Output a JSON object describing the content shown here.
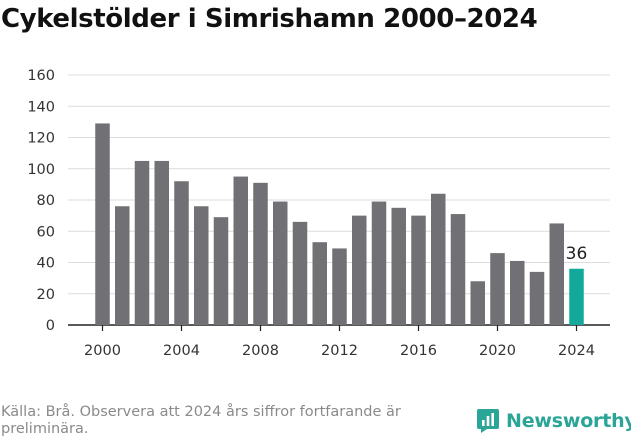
{
  "title": "Cykelstölder i Simrishamn 2000–2024",
  "source_text": "Källa: Brå. Observera att 2024 års siffror fortfarande är preliminära.",
  "brand": {
    "name": "Newsworthy"
  },
  "colors": {
    "bar": "#717074",
    "highlight": "#12a89a",
    "brand": "#2aa597"
  },
  "chart_data": {
    "type": "bar",
    "title": "Cykelstölder i Simrishamn 2000–2024",
    "xlabel": "",
    "ylabel": "",
    "categories": [
      2000,
      2001,
      2002,
      2003,
      2004,
      2005,
      2006,
      2007,
      2008,
      2009,
      2010,
      2011,
      2012,
      2013,
      2014,
      2015,
      2016,
      2017,
      2018,
      2019,
      2020,
      2021,
      2022,
      2023,
      2024
    ],
    "values": [
      129,
      76,
      105,
      105,
      92,
      76,
      69,
      95,
      91,
      79,
      66,
      53,
      49,
      70,
      79,
      75,
      70,
      84,
      71,
      28,
      46,
      41,
      34,
      65,
      36
    ],
    "ylim": [
      0,
      160
    ],
    "yticks": [
      0,
      20,
      40,
      60,
      80,
      100,
      120,
      140,
      160
    ],
    "xticks": [
      2000,
      2004,
      2008,
      2012,
      2016,
      2020,
      2024
    ],
    "highlight": {
      "category": 2024,
      "label": "36"
    },
    "grid": true
  }
}
